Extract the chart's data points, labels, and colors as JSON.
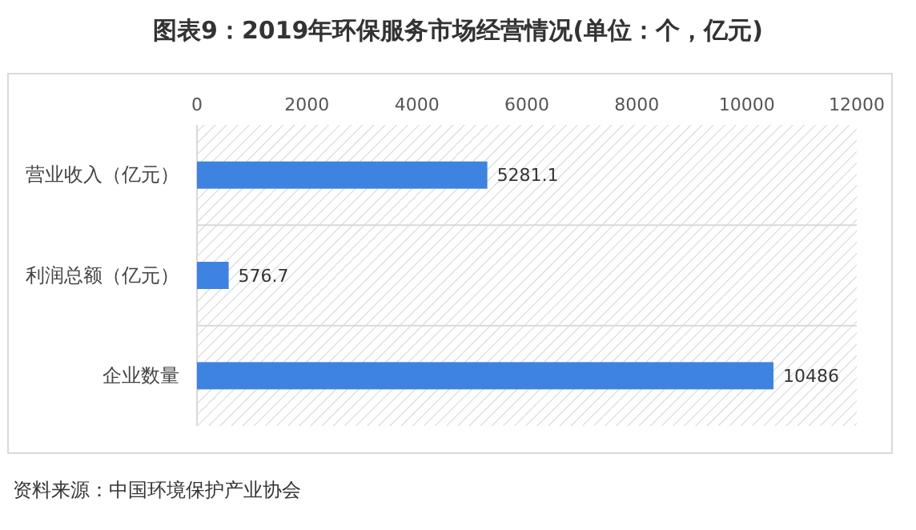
{
  "chart_data": {
    "type": "bar",
    "orientation": "horizontal",
    "title": "图表9：2019年环保服务市场经营情况(单位：个，亿元)",
    "categories": [
      "营业收入（亿元）",
      "利润总额（亿元）",
      "企业数量"
    ],
    "values": [
      5281.1,
      576.7,
      10486
    ],
    "color": "#3f83e0",
    "xlim": [
      0,
      12000
    ],
    "xticks": [
      0,
      2000,
      4000,
      6000,
      8000,
      10000,
      12000
    ],
    "grid": "y",
    "data_labels": true,
    "annotations": [
      "资料来源：中国环境保护产业协会"
    ]
  }
}
